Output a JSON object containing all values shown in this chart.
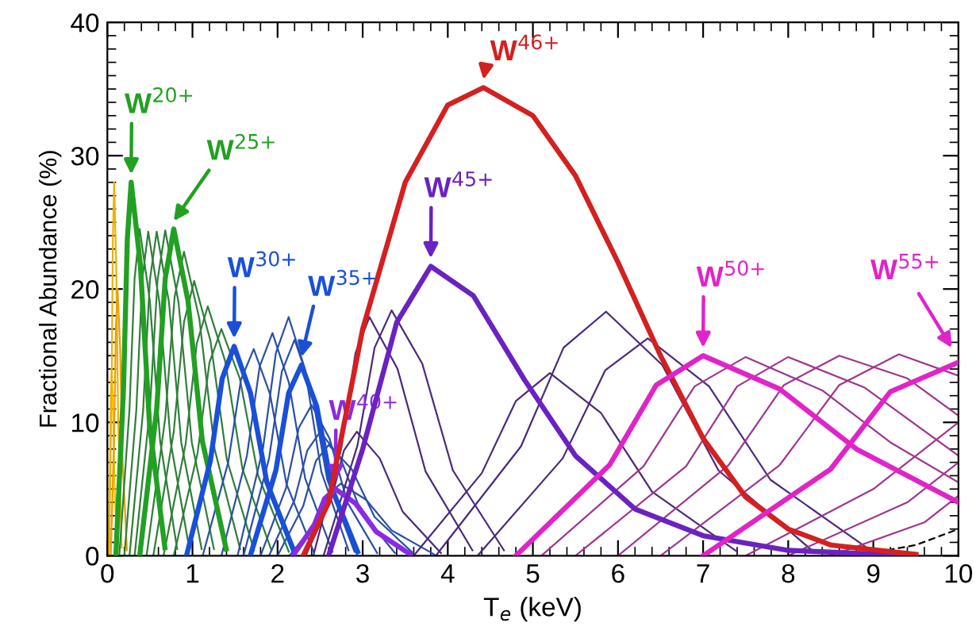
{
  "chart_data": {
    "type": "line",
    "xlabel": "T$_{e}$ (keV)",
    "ylabel": "Fractional Abundance (%)",
    "xlim": [
      0,
      10
    ],
    "xticks": [
      0,
      1,
      2,
      3,
      4,
      5,
      6,
      7,
      8,
      9,
      10
    ],
    "ylim": [
      0,
      40
    ],
    "yticks": [
      0,
      10,
      20,
      30,
      40
    ],
    "grid": false,
    "legend": false,
    "marker": "none",
    "line_style": "solid",
    "series": [
      {
        "color": "#f5c000",
        "x": [
          0.01,
          0.03,
          0.04,
          0.05,
          0.068,
          0.086,
          0.116
        ],
        "values": [
          0,
          6.3,
          11.9,
          14,
          10.9,
          4.9,
          0.3
        ]
      },
      {
        "color": "#f0b000",
        "x": [
          0.02,
          0.05,
          0.065,
          0.08,
          0.104,
          0.128,
          0.168
        ],
        "values": [
          0,
          12.6,
          23.8,
          28,
          21.8,
          9.8,
          0.6
        ]
      },
      {
        "color": "#e8a000",
        "x": [
          0.04,
          0.08,
          0.1,
          0.12,
          0.15,
          0.18,
          0.23
        ],
        "values": [
          0,
          9,
          17,
          20,
          15.6,
          7,
          0.4
        ]
      },
      {
        "name": "W$^{20+}$",
        "color": "#22a022",
        "x": [
          0.1,
          0.19,
          0.235,
          0.28,
          0.388,
          0.496,
          0.676
        ],
        "values": [
          0,
          12.6,
          23.8,
          28,
          21.8,
          9.8,
          0.6
        ]
      },
      {
        "color": "#2f7f3a",
        "x": [
          0.14,
          0.26,
          0.32,
          0.38,
          0.5,
          0.62,
          0.82
        ],
        "values": [
          0,
          11,
          20.8,
          24.5,
          19.1,
          8.6,
          0.5
        ]
      },
      {
        "color": "#2f7f3a",
        "x": [
          0.2,
          0.34,
          0.41,
          0.48,
          0.612,
          0.744,
          0.964
        ],
        "values": [
          0,
          10.9,
          20.7,
          24.3,
          19,
          8.5,
          0.5
        ]
      },
      {
        "color": "#2f7f3a",
        "x": [
          0.26,
          0.42,
          0.5,
          0.58,
          0.724,
          0.868,
          1.108
        ],
        "values": [
          0,
          10.9,
          20.7,
          24.3,
          19,
          8.5,
          0.5
        ]
      },
      {
        "color": "#2f7f3a",
        "x": [
          0.32,
          0.5,
          0.59,
          0.68,
          0.836,
          0.992,
          1.252
        ],
        "values": [
          0,
          11,
          20.7,
          24.4,
          19,
          8.5,
          0.5
        ]
      },
      {
        "name": "W$^{25+}$",
        "color": "#22a022",
        "x": [
          0.38,
          0.58,
          0.68,
          0.78,
          0.948,
          1.116,
          1.396
        ],
        "values": [
          0,
          11,
          20.8,
          24.5,
          19.1,
          8.6,
          0.5
        ]
      },
      {
        "color": "#2f7f3a",
        "x": [
          0.46,
          0.68,
          0.79,
          0.9,
          1.08,
          1.26,
          1.56
        ],
        "values": [
          0,
          10.3,
          19.4,
          22.8,
          17.8,
          8,
          0.5
        ]
      },
      {
        "color": "#2f7f3a",
        "x": [
          0.54,
          0.78,
          0.9,
          1.02,
          1.212,
          1.404,
          1.724
        ],
        "values": [
          0,
          9.3,
          17.5,
          20.6,
          16.1,
          7.2,
          0.4
        ]
      },
      {
        "color": "#2f7f3a",
        "x": [
          0.66,
          0.92,
          1.05,
          1.18,
          1.384,
          1.588,
          1.928
        ],
        "values": [
          0,
          8.4,
          15.9,
          18.7,
          14.6,
          6.5,
          0.4
        ]
      },
      {
        "color": "#2f7f3a",
        "x": [
          0.78,
          1.06,
          1.2,
          1.34,
          1.556,
          1.772,
          2.132
        ],
        "values": [
          0,
          7.7,
          14.5,
          17,
          13.3,
          6,
          0.3
        ]
      },
      {
        "name": "W$^{30+}$",
        "color": "#1a50d8",
        "x": [
          0.93,
          1.21,
          1.35,
          1.49,
          1.682,
          1.874,
          2.194
        ],
        "values": [
          0,
          7.1,
          13.3,
          15.7,
          12.2,
          5.5,
          0.3
        ]
      },
      {
        "color": "#2a4fa8",
        "x": [
          1.12,
          1.42,
          1.57,
          1.72,
          1.912,
          2.104,
          2.424
        ],
        "values": [
          0,
          7,
          13.2,
          15.5,
          12.1,
          5.4,
          0.3
        ]
      },
      {
        "color": "#2a4fa8",
        "x": [
          1.34,
          1.64,
          1.79,
          1.94,
          2.132,
          2.324,
          2.644
        ],
        "values": [
          0,
          7.5,
          14.2,
          16.7,
          13,
          5.8,
          0.3
        ]
      },
      {
        "color": "#2a4fa8",
        "x": [
          1.53,
          1.83,
          1.98,
          2.13,
          2.322,
          2.514,
          2.834
        ],
        "values": [
          0,
          8.1,
          15.2,
          17.9,
          14,
          6.3,
          0.4
        ]
      },
      {
        "color": "#2a4fa8",
        "x": [
          1.6,
          1.9,
          2.05,
          2.2,
          2.392,
          2.584,
          2.904
        ],
        "values": [
          0,
          7.3,
          13.8,
          16.2,
          12.6,
          5.7,
          0.3
        ]
      },
      {
        "name": "W$^{35+}$",
        "color": "#1a50d8",
        "x": [
          1.68,
          1.98,
          2.13,
          2.28,
          2.46,
          2.64,
          2.94
        ],
        "values": [
          0,
          6.4,
          12.2,
          14.3,
          11.2,
          5,
          0.3
        ]
      },
      {
        "color": "#2a4fa8",
        "x": [
          1.8,
          2.1,
          2.25,
          2.4,
          2.61,
          2.82,
          3.17
        ],
        "values": [
          0,
          5.1,
          9.6,
          11.3,
          8.8,
          4,
          0.2
        ]
      },
      {
        "color": "#2a4fa8",
        "x": [
          1.9,
          2.2,
          2.35,
          2.5,
          2.74,
          2.98,
          3.38
        ],
        "values": [
          0,
          4.2,
          7.9,
          9.3,
          7.3,
          3.3,
          0.2
        ]
      },
      {
        "color": "#2a4fa8",
        "x": [
          2.0,
          2.3,
          2.45,
          2.6,
          2.87,
          3.14,
          3.59
        ],
        "values": [
          0,
          3.7,
          7.1,
          8.3,
          6.5,
          2.9,
          0.2
        ]
      },
      {
        "color": "#2a4fa8",
        "x": [
          2.14,
          2.44,
          2.59,
          2.74,
          3.04,
          3.34,
          3.84
        ],
        "values": [
          0,
          2.4,
          4.6,
          5.4,
          4.2,
          1.9,
          0.1
        ]
      },
      {
        "name": "W$^{40+}$",
        "color": "#8a2be2",
        "x": [
          2.18,
          2.43,
          2.555,
          2.68,
          2.92,
          3.16,
          3.56
        ],
        "values": [
          0,
          2.3,
          4.3,
          5,
          3.9,
          1.8,
          0.1
        ]
      },
      {
        "color": "#4b2a7a",
        "x": [
          2.33,
          2.63,
          2.78,
          2.93,
          3.2,
          3.47,
          3.92
        ],
        "values": [
          0,
          4.2,
          7.9,
          9.3,
          7.3,
          3.3,
          0.2
        ]
      },
      {
        "color": "#4b2a7a",
        "x": [
          2.42,
          2.75,
          2.915,
          3.08,
          3.41,
          3.74,
          4.29
        ],
        "values": [
          0,
          8.1,
          15.2,
          17.9,
          14,
          6.3,
          0.4
        ]
      },
      {
        "color": "#4b2a7a",
        "x": [
          2.54,
          2.94,
          3.14,
          3.34,
          3.7,
          4.06,
          4.66
        ],
        "values": [
          0,
          8.3,
          15.6,
          18.4,
          14.4,
          6.4,
          0.4
        ]
      },
      {
        "name": "W$^{45+}$",
        "color": "#6a22c0",
        "x": [
          2.6,
          3.0,
          3.4,
          3.8,
          4.3,
          4.9,
          5.5,
          6.2,
          7.0,
          8.0,
          9.5
        ],
        "values": [
          0,
          8,
          17.5,
          21.7,
          19.5,
          13.2,
          7.5,
          3.5,
          1.5,
          0.4,
          0
        ]
      },
      {
        "name": "W$^{46+}$",
        "color": "#d42020",
        "x": [
          2.3,
          2.6,
          3.0,
          3.5,
          4.0,
          4.42,
          5.0,
          5.5,
          6.0,
          6.5,
          7.0,
          7.5,
          8.0,
          8.5,
          9.5
        ],
        "values": [
          0,
          4,
          17,
          28,
          33.8,
          35.1,
          33,
          28.5,
          22,
          15,
          8.8,
          4.4,
          2,
          0.8,
          0.1
        ]
      },
      {
        "color": "#4b2a7a",
        "x": [
          3.6,
          4.4,
          4.8,
          5.2,
          5.8,
          6.4,
          7.4
        ],
        "values": [
          0,
          6.2,
          11.6,
          13.7,
          10.7,
          4.8,
          0.3
        ]
      },
      {
        "color": "#4b2a7a",
        "x": [
          3.86,
          4.86,
          5.36,
          5.86,
          6.52,
          7.18,
          8.28
        ],
        "values": [
          0,
          8.2,
          15.6,
          18.3,
          14.3,
          6.4,
          0.4
        ]
      },
      {
        "color": "#4b2a7a",
        "x": [
          4.35,
          5.35,
          5.85,
          6.35,
          7.07,
          7.79,
          8.99
        ],
        "values": [
          0,
          7.3,
          13.9,
          16.3,
          12.7,
          5.7,
          0.3
        ]
      },
      {
        "name": "W$^{50+}$",
        "color": "#e024c8",
        "x": [
          4.8,
          5.9,
          6.45,
          7.0,
          7.9,
          8.8,
          10.0
        ],
        "values": [
          0,
          6.8,
          12.8,
          15,
          12.5,
          8,
          4
        ]
      },
      {
        "color": "#a0358f",
        "x": [
          5.1,
          6.3,
          6.9,
          7.5,
          8.4,
          9.2,
          10.0
        ],
        "values": [
          0,
          6.7,
          12.7,
          14.9,
          12.4,
          8.5,
          5.5
        ]
      },
      {
        "color": "#a0358f",
        "x": [
          5.5,
          6.8,
          7.4,
          8.0,
          8.9,
          10.0
        ],
        "values": [
          0,
          6.7,
          12.7,
          14.9,
          12.6,
          7.5
        ]
      },
      {
        "color": "#a0358f",
        "x": [
          6.0,
          7.3,
          7.95,
          8.6,
          9.4,
          10.0
        ],
        "values": [
          0,
          6.8,
          12.8,
          15,
          13.3,
          10.5
        ]
      },
      {
        "color": "#a0358f",
        "x": [
          6.5,
          7.9,
          8.6,
          9.3,
          10.0
        ],
        "values": [
          0,
          6.8,
          12.8,
          15.1,
          13.5
        ]
      },
      {
        "name": "W$^{55+}$",
        "color": "#e024c8",
        "x": [
          7.0,
          8.5,
          9.2,
          10.0
        ],
        "values": [
          0,
          6.5,
          12.3,
          14.5
        ]
      },
      {
        "color": "#a0358f",
        "x": [
          7.5,
          9.0,
          10.0
        ],
        "values": [
          0,
          5,
          10
        ]
      },
      {
        "color": "#a0358f",
        "x": [
          8.0,
          9.4,
          10.0
        ],
        "values": [
          0,
          4,
          7
        ]
      },
      {
        "color": "#a0358f",
        "x": [
          8.5,
          9.6,
          10.0
        ],
        "values": [
          0,
          2.5,
          4.5
        ]
      },
      {
        "color": "#000000",
        "line_style": "dashed",
        "x": [
          8.8,
          9.5,
          10.0
        ],
        "values": [
          0,
          0.8,
          2
        ]
      }
    ]
  }
}
